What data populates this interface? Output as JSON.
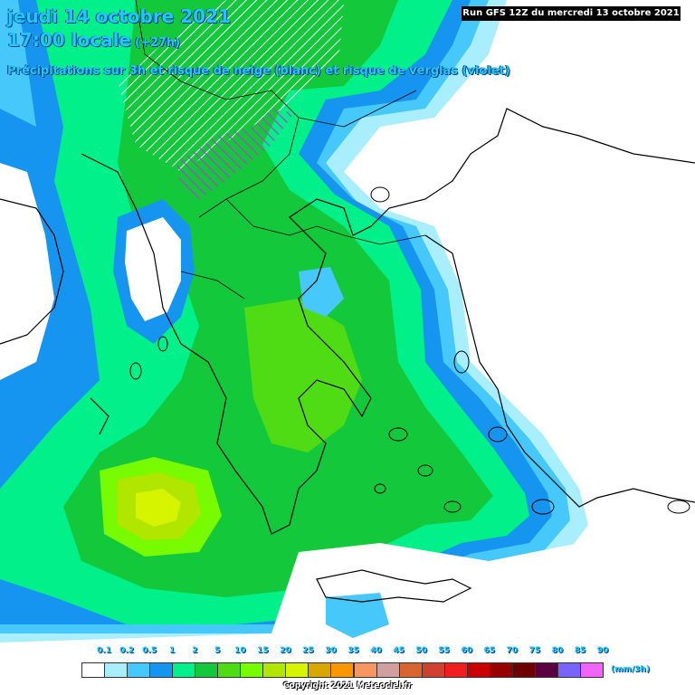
{
  "header": {
    "date": "jeudi 14 octobre 2021",
    "time": "17:00 locale",
    "offset": "(+27h)",
    "subtitle": "Précipitations sur 3h et risque de neige (blanc) et risque de verglas (violet)",
    "run": "Run GFS 12Z du mercredi 13 octobre 2021"
  },
  "legend": {
    "units": "(mm/3h)",
    "ticks": [
      "0.1",
      "0.2",
      "0.5",
      "1",
      "2",
      "5",
      "10",
      "15",
      "20",
      "25",
      "30",
      "35",
      "40",
      "45",
      "50",
      "55",
      "60",
      "65",
      "70",
      "75",
      "80",
      "85",
      "90"
    ],
    "colors": [
      "#ffffff",
      "#a9eefd",
      "#46c8fa",
      "#1695f0",
      "#02f08a",
      "#14c83c",
      "#50dc14",
      "#78fa00",
      "#b0e600",
      "#d6f400",
      "#d8a800",
      "#fa9600",
      "#f89662",
      "#d0a0a0",
      "#d86430",
      "#d04030",
      "#f01e1e",
      "#c80000",
      "#960000",
      "#6e0000",
      "#5a0040",
      "#7864fa",
      "#f064fa"
    ]
  },
  "copyright": "Copyright 2021 Meteociel.fr"
}
